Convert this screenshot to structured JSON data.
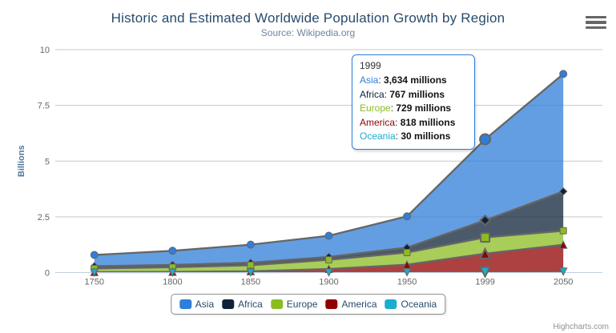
{
  "chart_data": {
    "type": "area",
    "stacking": "normal",
    "title": "Historic and Estimated Worldwide Population Growth by Region",
    "subtitle": "Source: Wikipedia.org",
    "categories": [
      "1750",
      "1800",
      "1850",
      "1900",
      "1950",
      "1999",
      "2050"
    ],
    "xlabel": "",
    "ylabel": "Billions",
    "unit": "millions",
    "ylim": [
      0,
      10
    ],
    "yticks": [
      0,
      2.5,
      5,
      7.5,
      10
    ],
    "grid": true,
    "legend_position": "bottom-center",
    "fill_opacity": 0.75,
    "line_color": "#666666",
    "hover_index": 5,
    "series": [
      {
        "name": "Asia",
        "color": "#2f7ed8",
        "marker": "circle",
        "values_millions": [
          502,
          635,
          809,
          947,
          1402,
          3634,
          5268
        ]
      },
      {
        "name": "Africa",
        "color": "#0d233a",
        "marker": "diamond",
        "values_millions": [
          106,
          107,
          111,
          133,
          221,
          767,
          1766
        ]
      },
      {
        "name": "Europe",
        "color": "#8bbc21",
        "marker": "square",
        "values_millions": [
          163,
          203,
          276,
          408,
          547,
          729,
          628
        ]
      },
      {
        "name": "America",
        "color": "#910000",
        "marker": "triangle",
        "values_millions": [
          18,
          31,
          54,
          156,
          339,
          818,
          1201
        ]
      },
      {
        "name": "Oceania",
        "color": "#1aadce",
        "marker": "triangle-down",
        "values_millions": [
          2,
          2,
          2,
          6,
          13,
          30,
          46
        ]
      }
    ]
  },
  "tooltip": {
    "category": "1999",
    "border_color": "#2f7ed8",
    "rows": [
      {
        "name": "Asia",
        "value": "3,634 millions"
      },
      {
        "name": "Africa",
        "value": "767 millions"
      },
      {
        "name": "Europe",
        "value": "729 millions"
      },
      {
        "name": "America",
        "value": "818 millions"
      },
      {
        "name": "Oceania",
        "value": "30 millions"
      }
    ]
  },
  "legend": {
    "items": [
      "Asia",
      "Africa",
      "Europe",
      "America",
      "Oceania"
    ]
  },
  "credits": "Highcharts.com"
}
